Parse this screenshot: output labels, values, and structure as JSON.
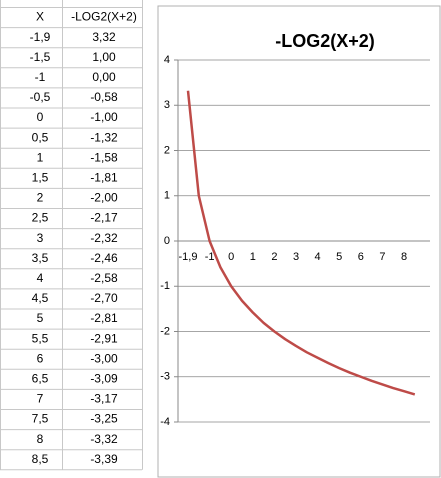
{
  "table": {
    "header": [
      "X",
      "-LOG2(X+2)"
    ],
    "rows": [
      [
        "-1,9",
        "3,32"
      ],
      [
        "-1,5",
        "1,00"
      ],
      [
        "-1",
        "0,00"
      ],
      [
        "-0,5",
        "-0,58"
      ],
      [
        "0",
        "-1,00"
      ],
      [
        "0,5",
        "-1,32"
      ],
      [
        "1",
        "-1,58"
      ],
      [
        "1,5",
        "-1,81"
      ],
      [
        "2",
        "-2,00"
      ],
      [
        "2,5",
        "-2,17"
      ],
      [
        "3",
        "-2,32"
      ],
      [
        "3,5",
        "-2,46"
      ],
      [
        "4",
        "-2,58"
      ],
      [
        "4,5",
        "-2,70"
      ],
      [
        "5",
        "-2,81"
      ],
      [
        "5,5",
        "-2,91"
      ],
      [
        "6",
        "-3,00"
      ],
      [
        "6,5",
        "-3,09"
      ],
      [
        "7",
        "-3,17"
      ],
      [
        "7,5",
        "-3,25"
      ],
      [
        "8",
        "-3,32"
      ],
      [
        "8,5",
        "-3,39"
      ]
    ]
  },
  "chart_data": {
    "type": "line",
    "title": "-LOG2(X+2)",
    "categories": [
      "-1,9",
      null,
      "-1",
      null,
      "0",
      null,
      "1",
      null,
      "2",
      null,
      "3",
      null,
      "4",
      null,
      "5",
      null,
      "6",
      null,
      "7",
      null,
      "8",
      null
    ],
    "values": [
      3.32,
      1.0,
      0.0,
      -0.58,
      -1.0,
      -1.32,
      -1.58,
      -1.81,
      -2.0,
      -2.17,
      -2.32,
      -2.46,
      -2.58,
      -2.7,
      -2.81,
      -2.91,
      -3.0,
      -3.09,
      -3.17,
      -3.25,
      -3.32,
      -3.39
    ],
    "color": "#be4b48",
    "ylim": [
      -4,
      4
    ],
    "yticks": [
      -4,
      -3,
      -2,
      -1,
      0,
      1,
      2,
      3,
      4
    ],
    "grid": true
  }
}
